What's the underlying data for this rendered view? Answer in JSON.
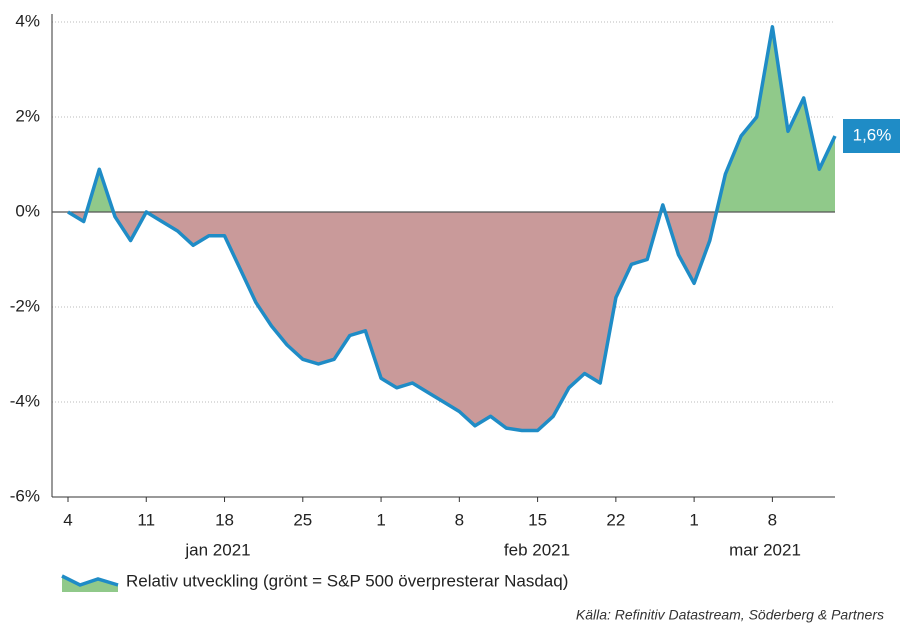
{
  "chart_data": {
    "type": "area",
    "categories": [
      "4",
      null,
      null,
      null,
      null,
      "11",
      null,
      null,
      null,
      null,
      "18",
      null,
      null,
      null,
      null,
      "25",
      null,
      null,
      null,
      null,
      "1",
      null,
      null,
      null,
      null,
      "8",
      null,
      null,
      null,
      null,
      "15",
      null,
      null,
      null,
      null,
      "22",
      null,
      null,
      null,
      null,
      "1",
      null,
      null,
      null,
      null,
      "8",
      null,
      null,
      null,
      null
    ],
    "month_labels": [
      "jan 2021",
      "feb 2021",
      "mar 2021"
    ],
    "series": [
      {
        "name": "Relativ utveckling (grönt = S&P 500 överpresterar Nasdaq)",
        "color": "#1f8cc6",
        "positive_fill": "#90c98a",
        "negative_fill": "#c99a9a",
        "values": [
          0,
          -0.2,
          0.9,
          -0.1,
          -0.6,
          0,
          -0.2,
          -0.4,
          -0.7,
          -0.5,
          -0.5,
          -1.2,
          -1.9,
          -2.4,
          -2.8,
          -3.1,
          -3.2,
          -3.1,
          -2.6,
          -2.5,
          -3.5,
          -3.7,
          -3.6,
          -3.8,
          -4.0,
          -4.2,
          -4.5,
          -4.3,
          -4.55,
          -4.6,
          -4.6,
          -4.3,
          -3.7,
          -3.4,
          -3.6,
          -1.8,
          -1.1,
          -1.0,
          0.15,
          -0.9,
          -1.5,
          -0.6,
          0.8,
          1.6,
          2.0,
          3.9,
          1.7,
          2.4,
          0.9,
          1.6
        ],
        "value_labels": [
          null,
          null,
          null,
          null,
          null,
          null,
          null,
          null,
          null,
          null,
          null,
          null,
          null,
          null,
          null,
          null,
          null,
          null,
          null,
          null,
          null,
          null,
          null,
          null,
          null,
          null,
          null,
          null,
          null,
          null,
          null,
          null,
          null,
          null,
          null,
          null,
          null,
          null,
          null,
          null,
          null,
          null,
          null,
          null,
          null,
          null,
          null,
          null,
          null,
          "1,6%"
        ]
      }
    ],
    "ylim": [
      -6,
      4
    ],
    "yticks": [
      {
        "value": 4,
        "label": "4%"
      },
      {
        "value": 2,
        "label": "2%"
      },
      {
        "value": 0,
        "label": "0%"
      },
      {
        "value": -2,
        "label": "-2%"
      },
      {
        "value": -4,
        "label": "-4%"
      },
      {
        "value": -6,
        "label": "-6%"
      }
    ],
    "grid": true,
    "source": "Källa: Refinitiv Datastream, Söderberg & Partners"
  }
}
